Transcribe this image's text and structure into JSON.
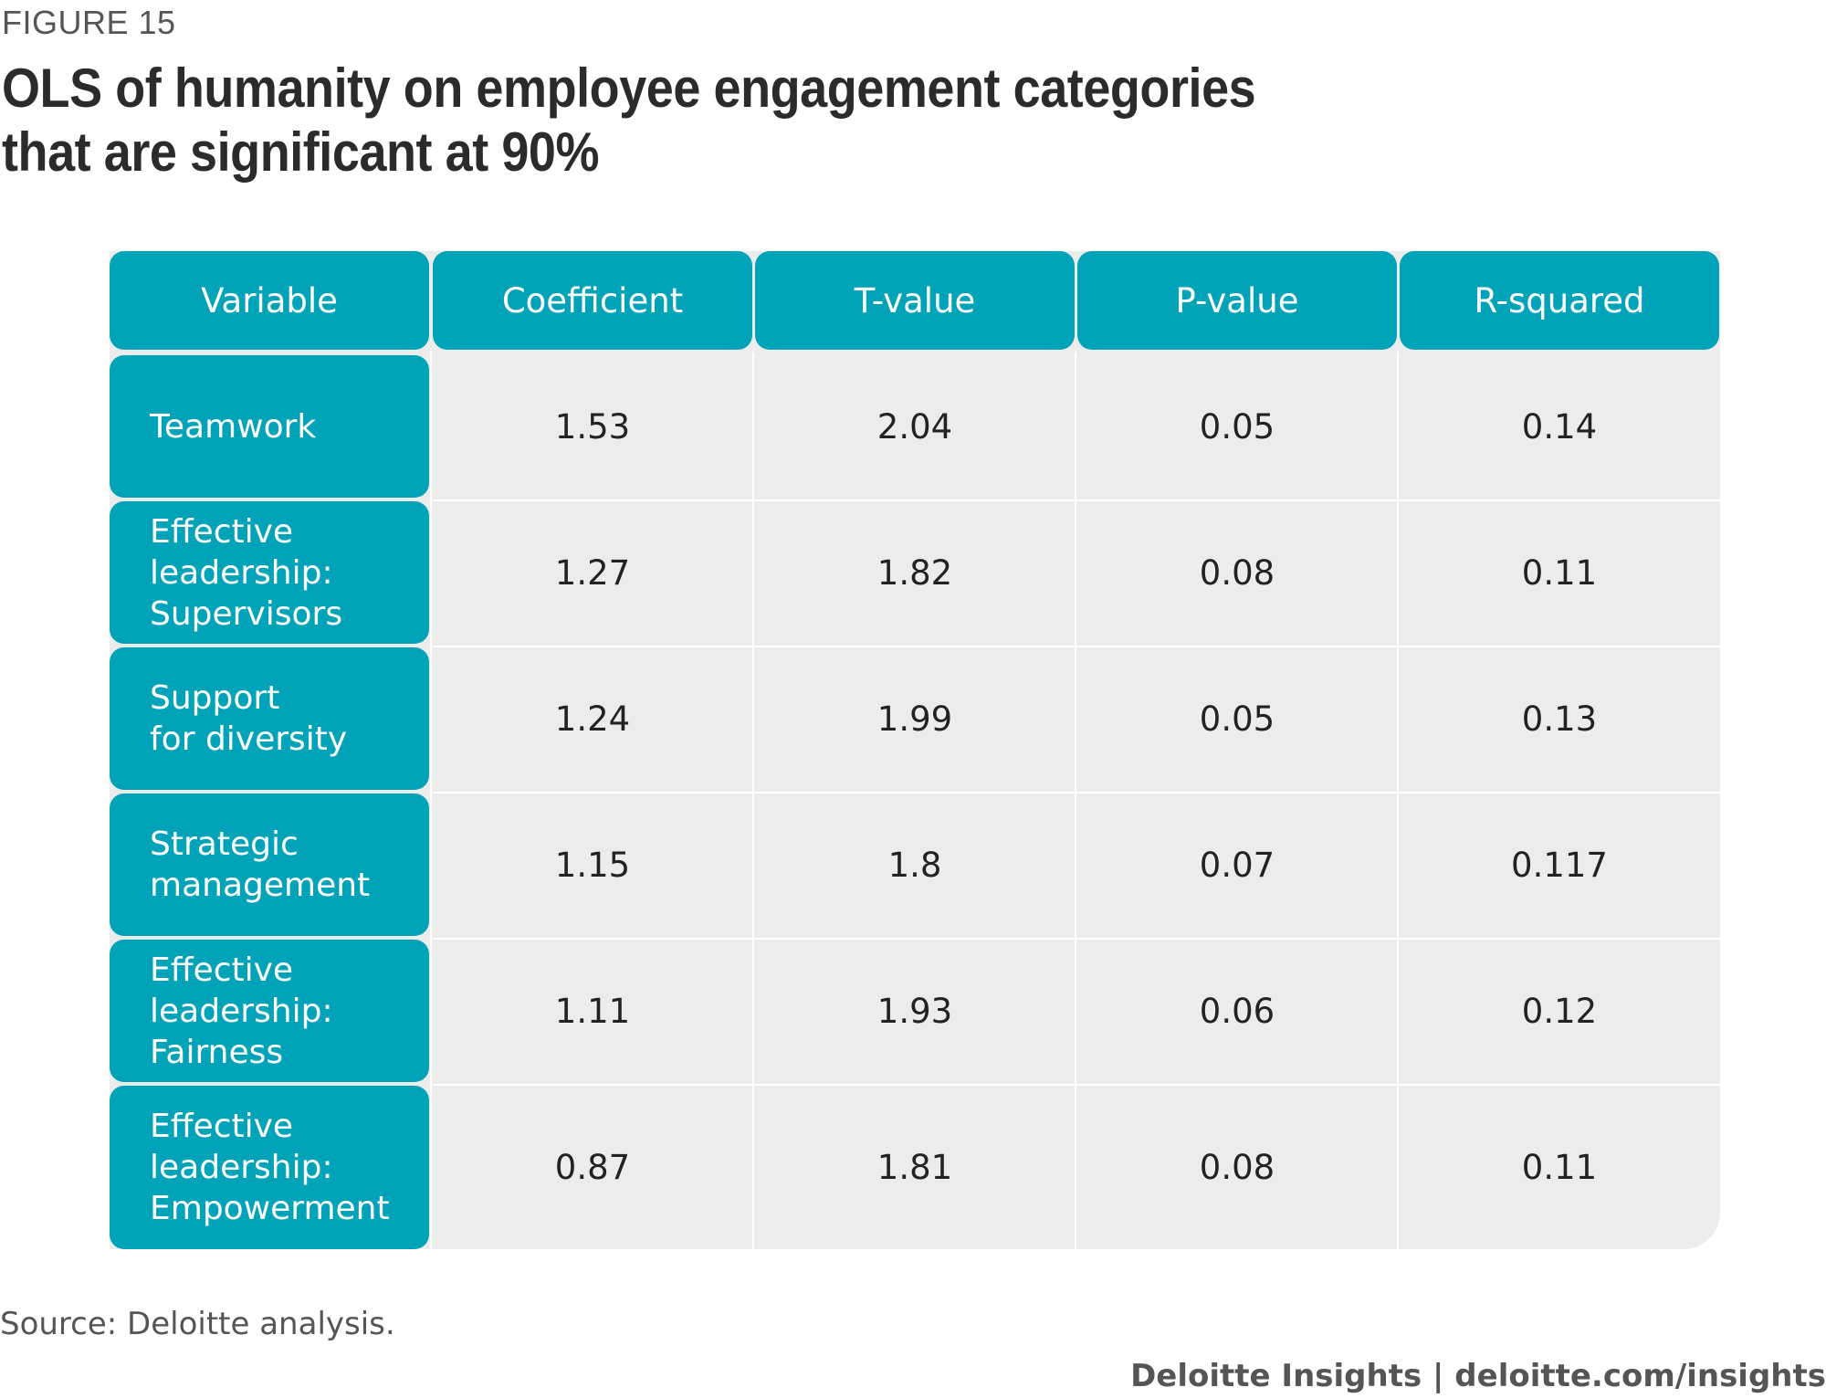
{
  "figure_label": "FIGURE 15",
  "title": "OLS of humanity on employee engagement categories that are significant at 90%",
  "source": "Source: Deloitte analysis.",
  "credit": "Deloitte Insights | deloitte.com/insights",
  "colors": {
    "header": "#00a3b8",
    "cell_bg": "#ececec",
    "text": "#222222"
  },
  "chart_data": {
    "type": "table",
    "columns": [
      "Variable",
      "Coefficient",
      "T-value",
      "P-value",
      "R-squared"
    ],
    "rows": [
      {
        "variable": "Teamwork",
        "coefficient": "1.53",
        "t_value": "2.04",
        "p_value": "0.05",
        "r_squared": "0.14"
      },
      {
        "variable": "Effective\nleadership:\nSupervisors",
        "coefficient": "1.27",
        "t_value": "1.82",
        "p_value": "0.08",
        "r_squared": "0.11"
      },
      {
        "variable": "Support\nfor diversity",
        "coefficient": "1.24",
        "t_value": "1.99",
        "p_value": "0.05",
        "r_squared": "0.13"
      },
      {
        "variable": "Strategic\nmanagement",
        "coefficient": "1.15",
        "t_value": "1.8",
        "p_value": "0.07",
        "r_squared": "0.117"
      },
      {
        "variable": "Effective\nleadership:\nFairness",
        "coefficient": "1.11",
        "t_value": "1.93",
        "p_value": "0.06",
        "r_squared": "0.12"
      },
      {
        "variable": "Effective\nleadership:\nEmpowerment",
        "coefficient": "0.87",
        "t_value": "1.81",
        "p_value": "0.08",
        "r_squared": "0.11"
      }
    ]
  }
}
